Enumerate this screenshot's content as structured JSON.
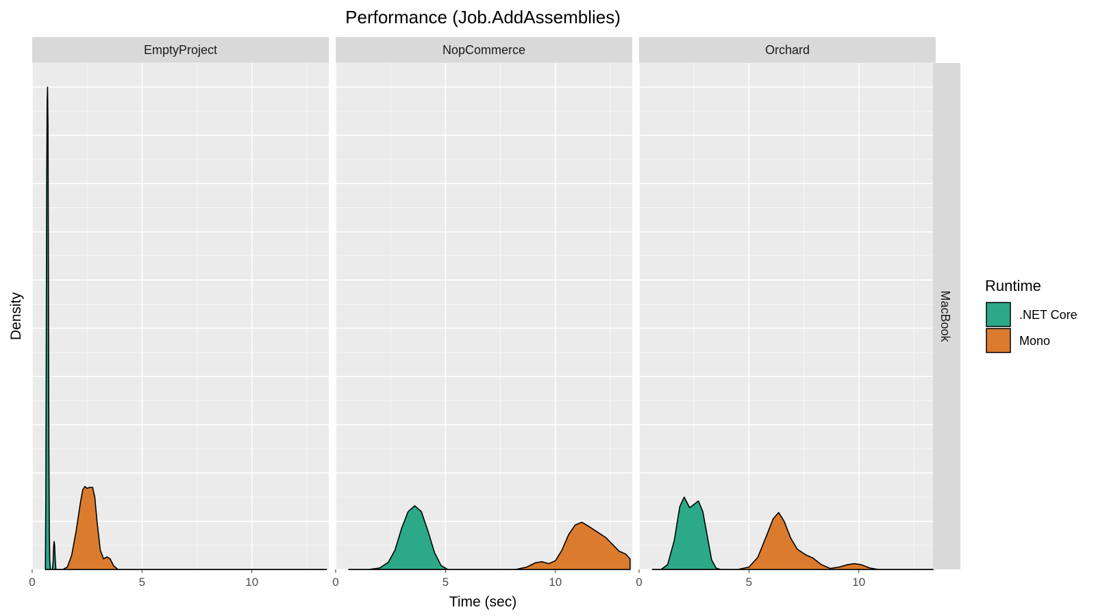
{
  "chart_data": {
    "type": "area",
    "subtype": "density",
    "title": "Performance (Job.AddAssemblies)",
    "xlabel": "Time (sec)",
    "ylabel": "Density",
    "xlim": [
      0,
      13.5
    ],
    "x_ticks": [
      0,
      5,
      10
    ],
    "ylim": [
      0,
      1.05
    ],
    "y_tick_labels_shown": false,
    "grid": true,
    "facet_row_label": "MacBook",
    "legend": {
      "title": "Runtime",
      "position": "right",
      "entries": [
        {
          "label": ".NET Core",
          "color": "#2ca989"
        },
        {
          "label": "Mono",
          "color": "#db7b2e"
        }
      ]
    },
    "panels": [
      {
        "name": "EmptyProject",
        "series": [
          {
            "name": ".NET Core",
            "color": "#2ca989",
            "points": [
              [
                0.6,
                0
              ],
              [
                0.62,
                0.15
              ],
              [
                0.64,
                0.45
              ],
              [
                0.66,
                0.8
              ],
              [
                0.68,
                0.97
              ],
              [
                0.7,
                1.0
              ],
              [
                0.72,
                0.92
              ],
              [
                0.74,
                0.6
              ],
              [
                0.76,
                0.25
              ],
              [
                0.78,
                0.08
              ],
              [
                0.8,
                0.02
              ],
              [
                0.83,
                0
              ],
              [
                0.92,
                0
              ],
              [
                0.95,
                0.015
              ],
              [
                0.98,
                0.05
              ],
              [
                1.0,
                0.058
              ],
              [
                1.02,
                0.05
              ],
              [
                1.05,
                0.02
              ],
              [
                1.08,
                0
              ],
              [
                13.4,
                0
              ]
            ]
          },
          {
            "name": "Mono",
            "color": "#db7b2e",
            "points": [
              [
                0.6,
                0
              ],
              [
                1.4,
                0
              ],
              [
                1.6,
                0.005
              ],
              [
                1.8,
                0.03
              ],
              [
                2.0,
                0.08
              ],
              [
                2.2,
                0.14
              ],
              [
                2.3,
                0.165
              ],
              [
                2.4,
                0.172
              ],
              [
                2.5,
                0.168
              ],
              [
                2.6,
                0.17
              ],
              [
                2.75,
                0.17
              ],
              [
                2.85,
                0.15
              ],
              [
                2.95,
                0.1
              ],
              [
                3.1,
                0.04
              ],
              [
                3.25,
                0.022
              ],
              [
                3.4,
                0.026
              ],
              [
                3.55,
                0.022
              ],
              [
                3.7,
                0.008
              ],
              [
                3.9,
                0
              ],
              [
                13.4,
                0
              ]
            ]
          }
        ]
      },
      {
        "name": "NopCommerce",
        "series": [
          {
            "name": ".NET Core",
            "color": "#2ca989",
            "points": [
              [
                0.6,
                0
              ],
              [
                1.5,
                0
              ],
              [
                2.0,
                0.003
              ],
              [
                2.4,
                0.015
              ],
              [
                2.7,
                0.04
              ],
              [
                3.0,
                0.085
              ],
              [
                3.3,
                0.12
              ],
              [
                3.6,
                0.132
              ],
              [
                3.9,
                0.12
              ],
              [
                4.2,
                0.08
              ],
              [
                4.5,
                0.035
              ],
              [
                4.8,
                0.008
              ],
              [
                5.1,
                0
              ],
              [
                13.4,
                0
              ]
            ]
          },
          {
            "name": "Mono",
            "color": "#db7b2e",
            "points": [
              [
                0.6,
                0
              ],
              [
                8.2,
                0
              ],
              [
                8.7,
                0.005
              ],
              [
                9.1,
                0.014
              ],
              [
                9.4,
                0.016
              ],
              [
                9.7,
                0.012
              ],
              [
                10.0,
                0.018
              ],
              [
                10.3,
                0.04
              ],
              [
                10.6,
                0.072
              ],
              [
                10.9,
                0.092
              ],
              [
                11.2,
                0.098
              ],
              [
                11.5,
                0.09
              ],
              [
                11.9,
                0.078
              ],
              [
                12.3,
                0.066
              ],
              [
                12.6,
                0.052
              ],
              [
                12.9,
                0.038
              ],
              [
                13.2,
                0.032
              ],
              [
                13.4,
                0.022
              ],
              [
                13.4,
                0
              ]
            ]
          }
        ]
      },
      {
        "name": "Orchard",
        "series": [
          {
            "name": ".NET Core",
            "color": "#2ca989",
            "points": [
              [
                0.6,
                0
              ],
              [
                1.0,
                0
              ],
              [
                1.3,
                0.01
              ],
              [
                1.6,
                0.06
              ],
              [
                1.85,
                0.13
              ],
              [
                2.05,
                0.15
              ],
              [
                2.3,
                0.128
              ],
              [
                2.5,
                0.135
              ],
              [
                2.7,
                0.142
              ],
              [
                2.9,
                0.12
              ],
              [
                3.1,
                0.07
              ],
              [
                3.3,
                0.02
              ],
              [
                3.5,
                0.003
              ],
              [
                3.7,
                0
              ],
              [
                13.4,
                0
              ]
            ]
          },
          {
            "name": "Mono",
            "color": "#db7b2e",
            "points": [
              [
                0.6,
                0
              ],
              [
                4.5,
                0
              ],
              [
                5.0,
                0.005
              ],
              [
                5.4,
                0.025
              ],
              [
                5.8,
                0.07
              ],
              [
                6.1,
                0.105
              ],
              [
                6.35,
                0.118
              ],
              [
                6.6,
                0.1
              ],
              [
                6.9,
                0.065
              ],
              [
                7.2,
                0.042
              ],
              [
                7.6,
                0.03
              ],
              [
                7.9,
                0.024
              ],
              [
                8.3,
                0.01
              ],
              [
                8.7,
                0.002
              ],
              [
                9.1,
                0.005
              ],
              [
                9.5,
                0.01
              ],
              [
                9.8,
                0.012
              ],
              [
                10.1,
                0.01
              ],
              [
                10.5,
                0.003
              ],
              [
                10.9,
                0
              ],
              [
                13.4,
                0
              ]
            ]
          }
        ]
      }
    ]
  }
}
